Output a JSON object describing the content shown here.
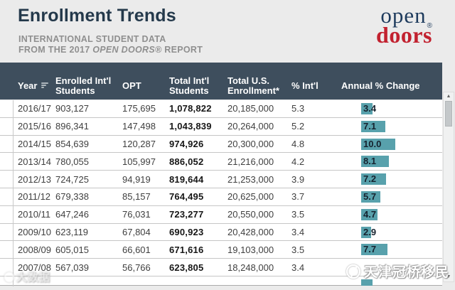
{
  "masthead": {
    "title": "Enrollment Trends",
    "subtitle_line1": "INTERNATIONAL STUDENT DATA",
    "subtitle_line2_prefix": "FROM THE 2017 ",
    "subtitle_line2_italic": "OPEN DOORS®",
    "subtitle_line2_suffix": " REPORT"
  },
  "logo": {
    "word_top": "open",
    "registered": "®",
    "word_bottom": "doors"
  },
  "table": {
    "columns": [
      {
        "key": "year",
        "label": "Year",
        "sort": true
      },
      {
        "key": "enrolled",
        "label": "Enrolled Int'l\nStudents"
      },
      {
        "key": "opt",
        "label": "OPT"
      },
      {
        "key": "total_intl",
        "label": "Total Int'l\nStudents"
      },
      {
        "key": "total_us",
        "label": "Total U.S.\nEnrollment*"
      },
      {
        "key": "pct_intl",
        "label": "% Int'l"
      },
      {
        "key": "change",
        "label": "Annual % Change"
      }
    ],
    "rows": [
      {
        "year": "2016/17",
        "enrolled": "903,127",
        "opt": "175,695",
        "total_intl": "1,078,822",
        "total_us": "20,185,000",
        "pct_intl": "5.3",
        "change": "3.4"
      },
      {
        "year": "2015/16",
        "enrolled": "896,341",
        "opt": "147,498",
        "total_intl": "1,043,839",
        "total_us": "20,264,000",
        "pct_intl": "5.2",
        "change": "7.1"
      },
      {
        "year": "2014/15",
        "enrolled": "854,639",
        "opt": "120,287",
        "total_intl": "974,926",
        "total_us": "20,300,000",
        "pct_intl": "4.8",
        "change": "10.0"
      },
      {
        "year": "2013/14",
        "enrolled": "780,055",
        "opt": "105,997",
        "total_intl": "886,052",
        "total_us": "21,216,000",
        "pct_intl": "4.2",
        "change": "8.1"
      },
      {
        "year": "2012/13",
        "enrolled": "724,725",
        "opt": "94,919",
        "total_intl": "819,644",
        "total_us": "21,253,000",
        "pct_intl": "3.9",
        "change": "7.2"
      },
      {
        "year": "2011/12",
        "enrolled": "679,338",
        "opt": "85,157",
        "total_intl": "764,495",
        "total_us": "20,625,000",
        "pct_intl": "3.7",
        "change": "5.7"
      },
      {
        "year": "2010/11",
        "enrolled": "647,246",
        "opt": "76,031",
        "total_intl": "723,277",
        "total_us": "20,550,000",
        "pct_intl": "3.5",
        "change": "4.7"
      },
      {
        "year": "2009/10",
        "enrolled": "623,119",
        "opt": "67,804",
        "total_intl": "690,923",
        "total_us": "20,428,000",
        "pct_intl": "3.4",
        "change": "2.9"
      },
      {
        "year": "2008/09",
        "enrolled": "605,015",
        "opt": "66,601",
        "total_intl": "671,616",
        "total_us": "19,103,000",
        "pct_intl": "3.5",
        "change": "7.7"
      },
      {
        "year": "2007/08",
        "enrolled": "567,039",
        "opt": "56,766",
        "total_intl": "623,805",
        "total_us": "18,248,000",
        "pct_intl": "3.4",
        "change": ""
      }
    ]
  },
  "chart_data": {
    "type": "bar",
    "title": "Annual % Change (in-table bar column)",
    "categories": [
      "2016/17",
      "2015/16",
      "2014/15",
      "2013/14",
      "2012/13",
      "2011/12",
      "2010/11",
      "2009/10",
      "2008/09"
    ],
    "values": [
      3.4,
      7.1,
      10.0,
      8.1,
      7.2,
      5.7,
      4.7,
      2.9,
      7.7
    ],
    "bar_color": "#58a1ac",
    "xlim": [
      0,
      10
    ]
  },
  "watermarks": {
    "left_text": "大数据",
    "right_text": "天津冠桥移民"
  },
  "scrollbar": {
    "up": "▲",
    "down": "▼"
  },
  "colors": {
    "header_bg": "#3e4e5d",
    "accent_teal": "#58a1ac",
    "title": "#24394b",
    "logo_navy": "#1d3a5c",
    "logo_red": "#c2212f",
    "page_bg": "#ebebeb"
  }
}
